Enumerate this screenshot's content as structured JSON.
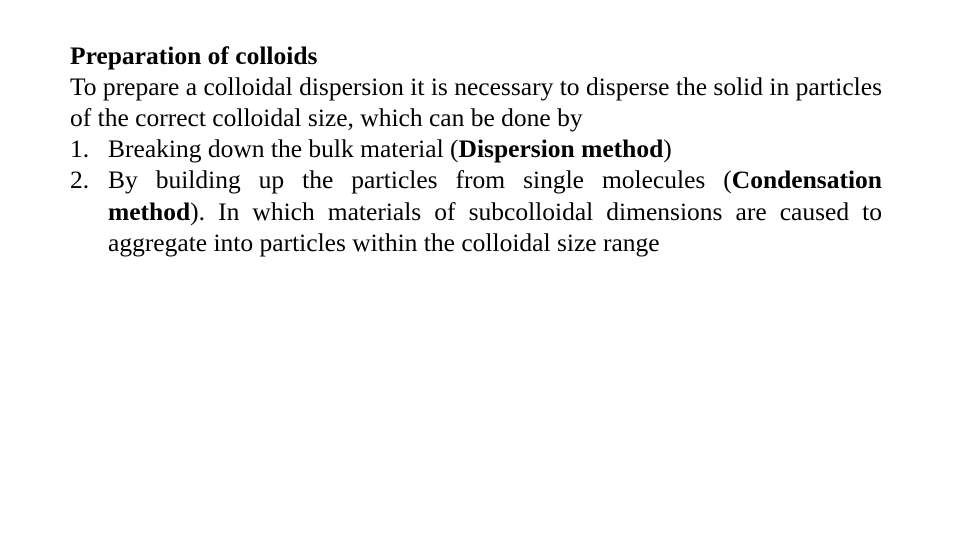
{
  "text_color": "#000000",
  "background_color": "#ffffff",
  "font_family": "Times New Roman",
  "title_fontsize_pt": 19,
  "body_fontsize_pt": 19,
  "title": "Preparation of colloids",
  "intro": "To prepare a colloidal dispersion it is necessary to disperse the solid in particles of the correct colloidal size, which can be done by",
  "items": [
    {
      "pre": "Breaking down the bulk material (",
      "bold": "Dispersion method",
      "post": ")"
    },
    {
      "pre": "By building up the particles from single molecules (",
      "bold": "Condensation method",
      "post": "). In which materials of subcolloidal dimensions are caused to aggregate into particles within the colloidal size range"
    }
  ]
}
